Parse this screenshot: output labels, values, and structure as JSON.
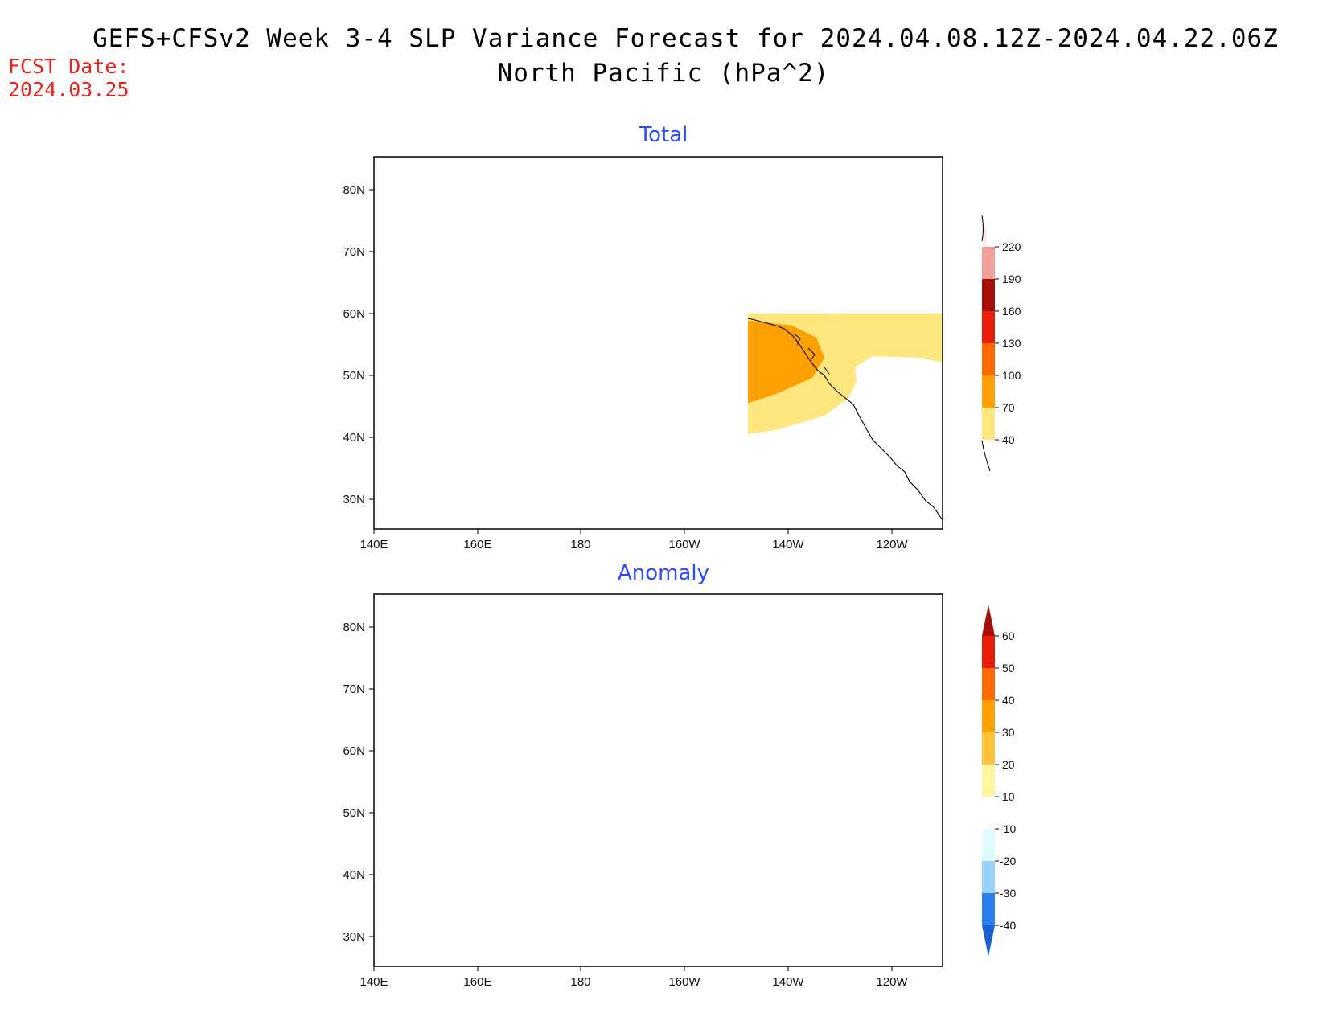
{
  "header": {
    "title_line1": "GEFS+CFSv2 Week 3-4 SLP Variance Forecast for 2024.04.08.12Z-2024.04.22.06Z",
    "title_line2": "North Pacific (hPa^2)",
    "fcst_label": "FCST Date:",
    "fcst_date": "2024.03.25"
  },
  "panels": [
    {
      "title": "Total",
      "lat_ticks": [
        "80N",
        "70N",
        "60N",
        "50N",
        "40N",
        "30N"
      ],
      "lon_ticks": [
        "140E",
        "160E",
        "180",
        "160W",
        "140W",
        "120W"
      ],
      "colorbar": {
        "labels": [
          "220",
          "190",
          "160",
          "130",
          "100",
          "70",
          "40"
        ],
        "colors": [
          "#f6d3cf",
          "#f2a19a",
          "#a50f0a",
          "#e81e0b",
          "#ff6a00",
          "#ff9f00",
          "#ffe67f"
        ]
      },
      "fields": {
        "band_40": "#ffe67f",
        "band_70": "#ff9f00",
        "band_100": "#ff6a00"
      }
    },
    {
      "title": "Anomaly",
      "lat_ticks": [
        "80N",
        "70N",
        "60N",
        "50N",
        "40N",
        "30N"
      ],
      "lon_ticks": [
        "140E",
        "160E",
        "180",
        "160W",
        "140W",
        "120W"
      ],
      "colorbar": {
        "labels": [
          "60",
          "50",
          "40",
          "30",
          "20",
          "10",
          "-10",
          "-20",
          "-30",
          "-40"
        ],
        "colors": [
          "#a50f0a",
          "#e81e0b",
          "#ff6a00",
          "#ff9f00",
          "#ffc23c",
          "#fff6a0",
          "#ffffff",
          "#e0fbff",
          "#96d2fa",
          "#2b80f0",
          "#1c5fd0"
        ]
      },
      "fields": {
        "band_m10": "#e0fbff",
        "band_m20": "#96d2fa",
        "band_m30": "#2b80f0"
      }
    }
  ]
}
